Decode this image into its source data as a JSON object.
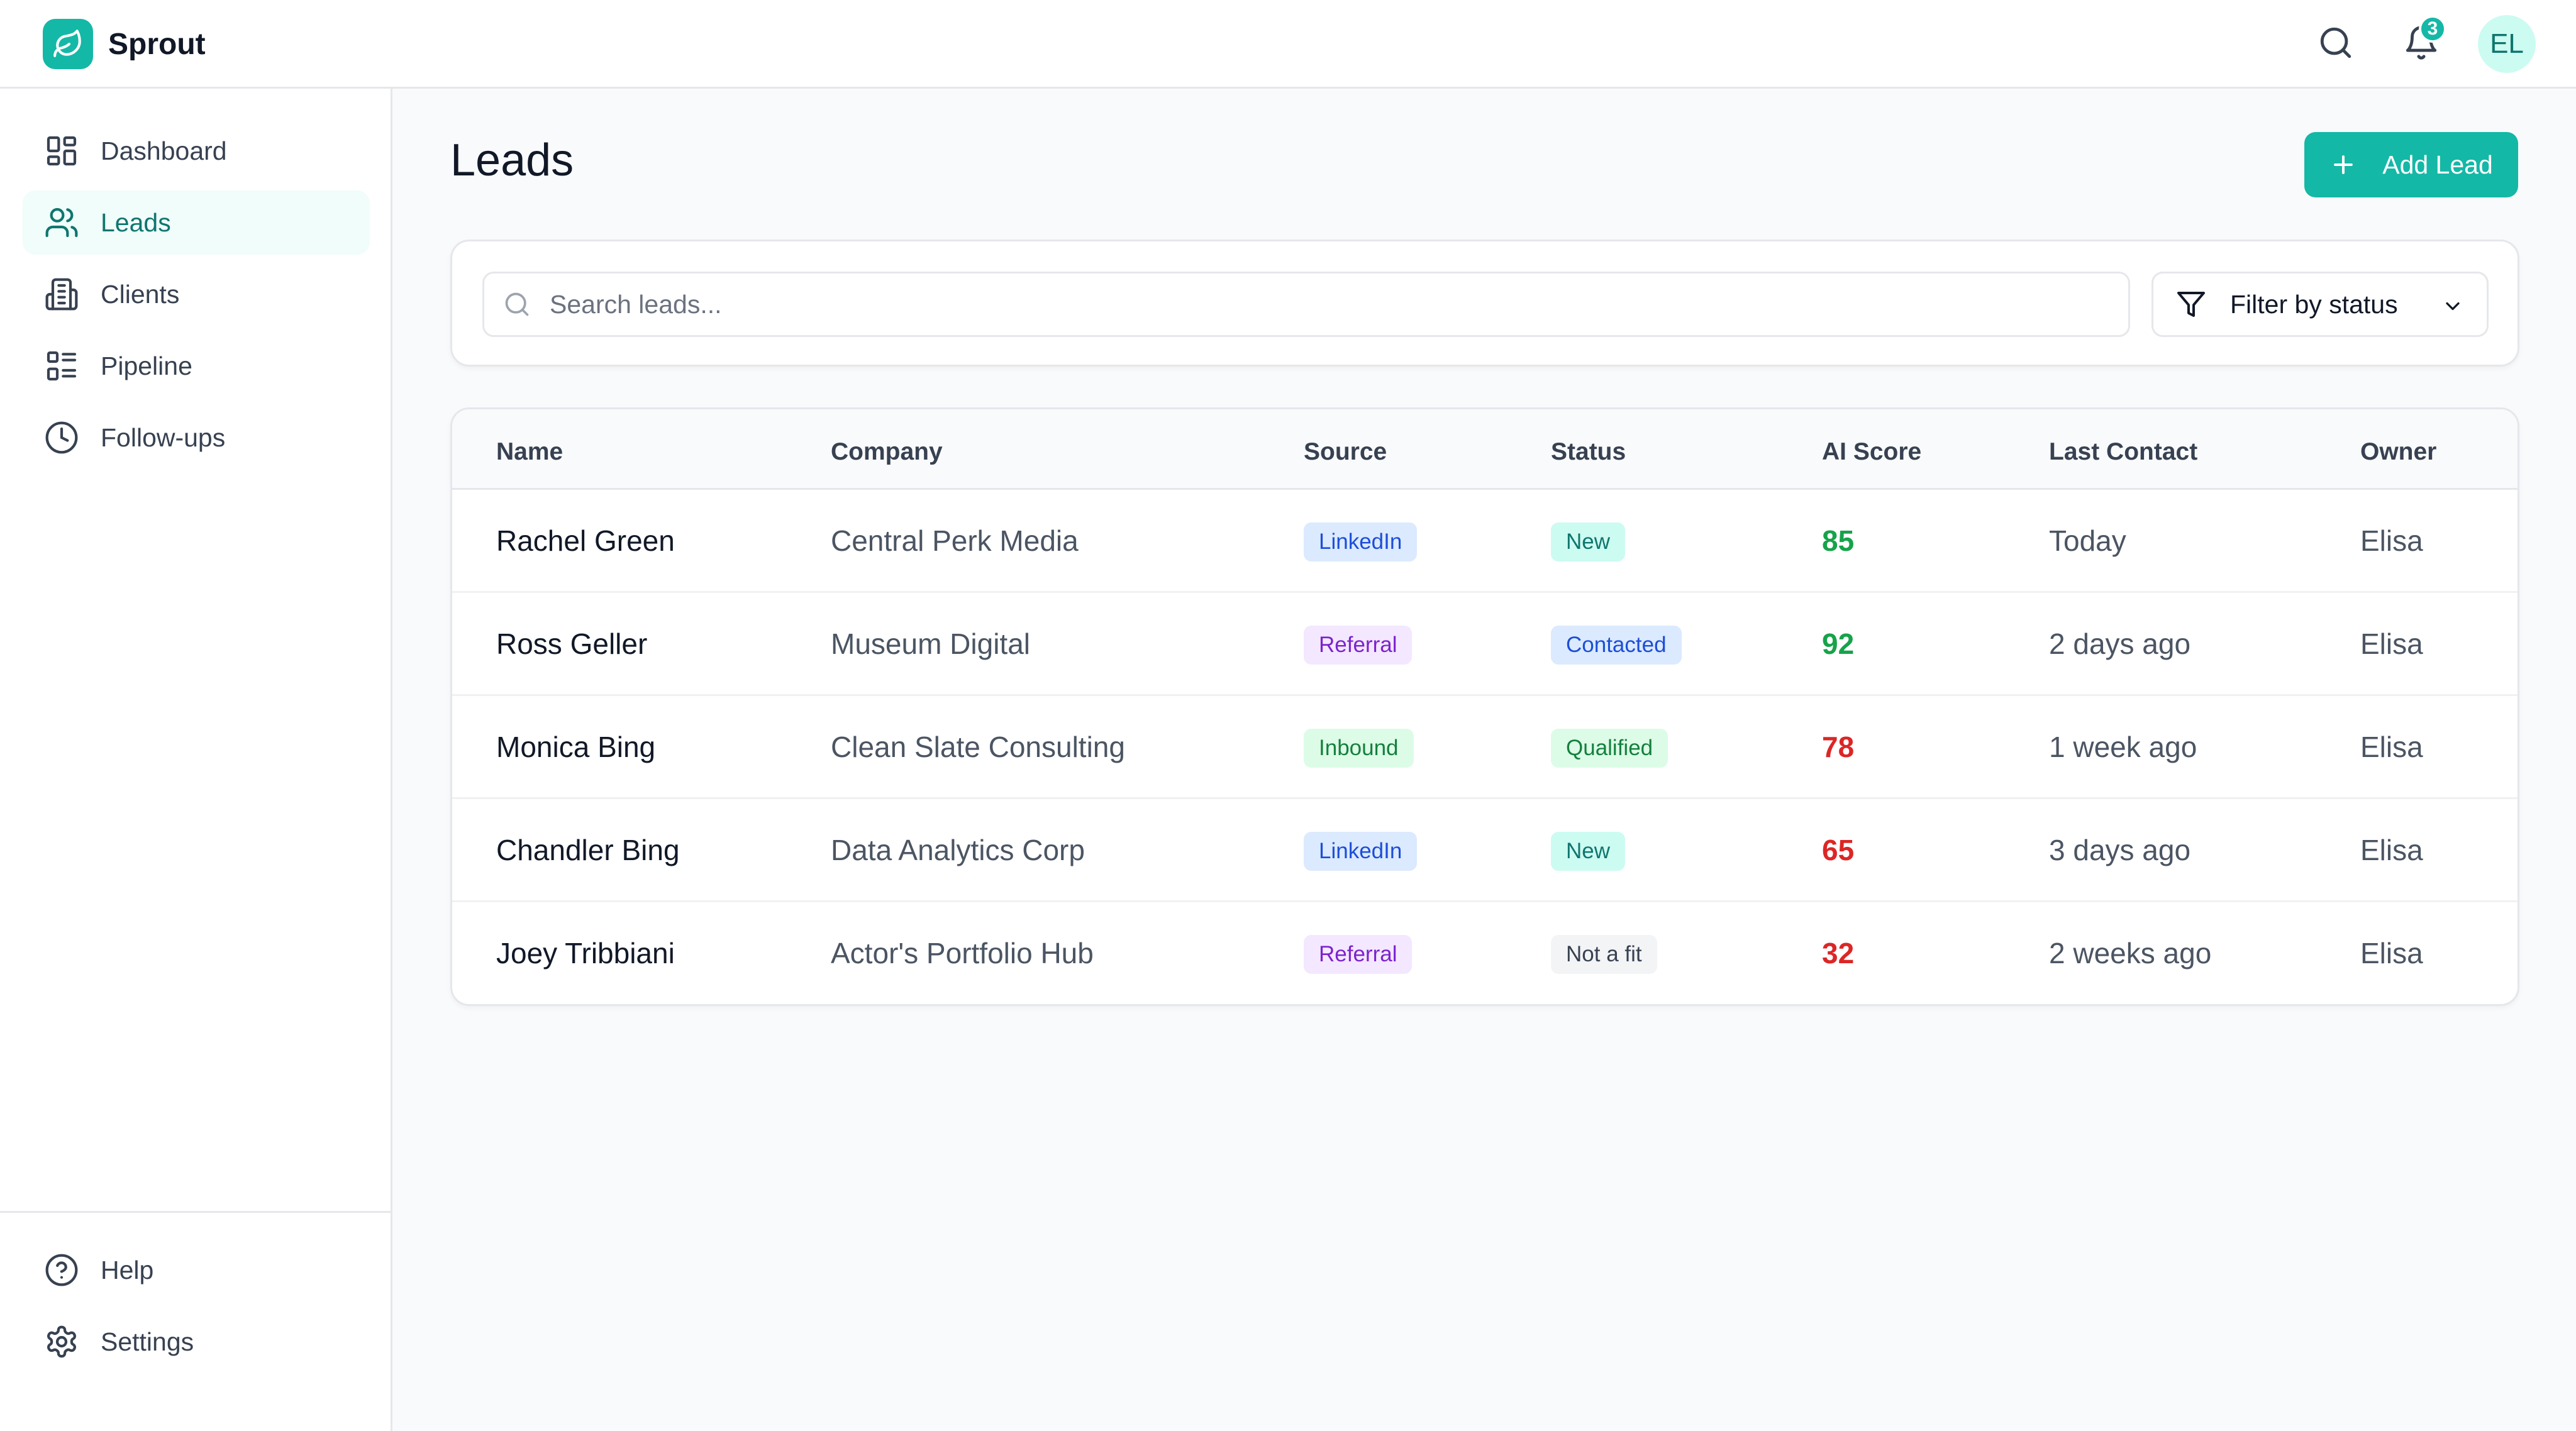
{
  "app": {
    "name": "Sprout",
    "notifications_count": "3",
    "user_initials": "EL"
  },
  "sidebar": {
    "items": [
      {
        "label": "Dashboard",
        "icon": "dashboard-icon",
        "active": false
      },
      {
        "label": "Leads",
        "icon": "users-icon",
        "active": true
      },
      {
        "label": "Clients",
        "icon": "building-icon",
        "active": false
      },
      {
        "label": "Pipeline",
        "icon": "pipeline-icon",
        "active": false
      },
      {
        "label": "Follow-ups",
        "icon": "clock-icon",
        "active": false
      }
    ],
    "bottom_items": [
      {
        "label": "Help",
        "icon": "help-icon"
      },
      {
        "label": "Settings",
        "icon": "gear-icon"
      }
    ]
  },
  "page": {
    "title": "Leads",
    "add_button_label": "Add Lead"
  },
  "filters": {
    "search_placeholder": "Search leads...",
    "search_value": "",
    "status_filter_label": "Filter by status"
  },
  "table": {
    "columns": [
      "Name",
      "Company",
      "Source",
      "Status",
      "AI Score",
      "Last Contact",
      "Owner"
    ],
    "rows": [
      {
        "name": "Rachel Green",
        "company": "Central Perk Media",
        "source": "LinkedIn",
        "status": "New",
        "score": "85",
        "last_contact": "Today",
        "owner": "Elisa"
      },
      {
        "name": "Ross Geller",
        "company": "Museum Digital",
        "source": "Referral",
        "status": "Contacted",
        "score": "92",
        "last_contact": "2 days ago",
        "owner": "Elisa"
      },
      {
        "name": "Monica Bing",
        "company": "Clean Slate Consulting",
        "source": "Inbound",
        "status": "Qualified",
        "score": "78",
        "last_contact": "1 week ago",
        "owner": "Elisa"
      },
      {
        "name": "Chandler Bing",
        "company": "Data Analytics Corp",
        "source": "LinkedIn",
        "status": "New",
        "score": "65",
        "last_contact": "3 days ago",
        "owner": "Elisa"
      },
      {
        "name": "Joey Tribbiani",
        "company": "Actor's Portfolio Hub",
        "source": "Referral",
        "status": "Not a fit",
        "score": "32",
        "last_contact": "2 weeks ago",
        "owner": "Elisa"
      }
    ]
  },
  "colors": {
    "accent": "#14b8a6",
    "score_high": "#16a34a",
    "score_low": "#dc2626",
    "source_linkedin": "#dbeafe",
    "source_referral": "#f3e8ff",
    "source_inbound": "#dcfce7",
    "status_new": "#ccfbf1",
    "status_contacted": "#dbeafe",
    "status_qualified": "#dcfce7",
    "status_notfit": "#f3f4f6"
  }
}
